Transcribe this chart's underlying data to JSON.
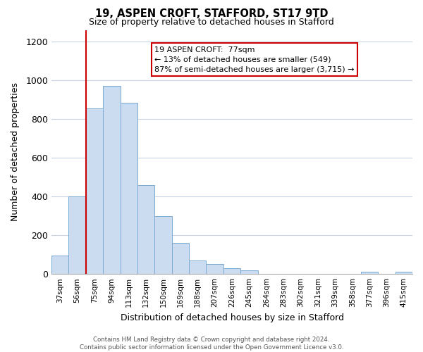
{
  "title1": "19, ASPEN CROFT, STAFFORD, ST17 9TD",
  "title2": "Size of property relative to detached houses in Stafford",
  "xlabel": "Distribution of detached houses by size in Stafford",
  "ylabel": "Number of detached properties",
  "bar_labels": [
    "37sqm",
    "56sqm",
    "75sqm",
    "94sqm",
    "113sqm",
    "132sqm",
    "150sqm",
    "169sqm",
    "188sqm",
    "207sqm",
    "226sqm",
    "245sqm",
    "264sqm",
    "283sqm",
    "302sqm",
    "321sqm",
    "339sqm",
    "358sqm",
    "377sqm",
    "396sqm",
    "415sqm"
  ],
  "bar_values": [
    95,
    400,
    855,
    970,
    885,
    460,
    300,
    160,
    70,
    50,
    30,
    18,
    0,
    0,
    0,
    0,
    0,
    0,
    10,
    0,
    10
  ],
  "bar_color": "#ccdcf0",
  "bar_edge_color": "#7aaad4",
  "highlight_color": "#cc0000",
  "annotation_title": "19 ASPEN CROFT:  77sqm",
  "annotation_line1": "← 13% of detached houses are smaller (549)",
  "annotation_line2": "87% of semi-detached houses are larger (3,715) →",
  "annotation_box_color": "#ffffff",
  "annotation_box_edge": "#cc0000",
  "ylim": [
    0,
    1260
  ],
  "yticks": [
    0,
    200,
    400,
    600,
    800,
    1000,
    1200
  ],
  "footer1": "Contains HM Land Registry data © Crown copyright and database right 2024.",
  "footer2": "Contains public sector information licensed under the Open Government Licence v3.0.",
  "bg_color": "#ffffff",
  "grid_color": "#c8d4e4"
}
